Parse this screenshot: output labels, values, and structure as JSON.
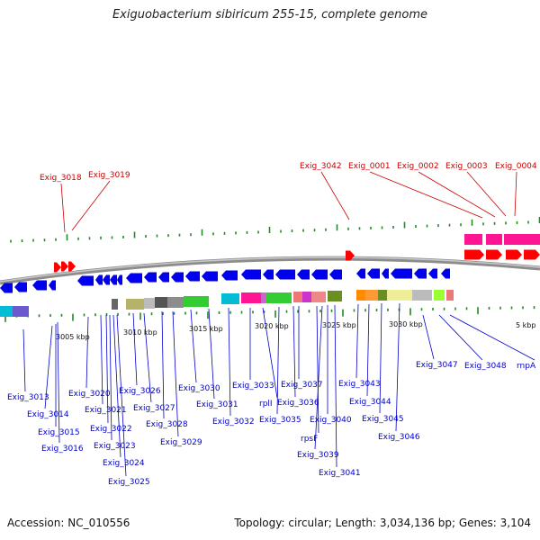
{
  "title": "Exiguobacterium sibiricum 255-15, complete genome",
  "footer": {
    "accession": "Accession: NC_010556",
    "summary": "Topology: circular; Length: 3,034,136 bp; Genes: 3,104"
  },
  "colors": {
    "forward_label": "#cc0000",
    "reverse_label": "#0000cc",
    "forward_gene": "#ff0000",
    "reverse_gene": "#0000ee",
    "tick": "#228b22",
    "backbone": "#8c8c8c"
  },
  "scale_labels": [
    "3005 kbp",
    "3010 kbp",
    "3015 kbp",
    "3020 kbp",
    "3025 kbp",
    "3030 kbp",
    "5 kbp"
  ],
  "forward_labels": [
    "Exig_3018",
    "Exig_3019",
    "Exig_3042",
    "Exig_0001",
    "Exig_0002",
    "Exig_0003",
    "Exig_0004"
  ],
  "reverse_labels": [
    "Exig_3013",
    "Exig_3014",
    "Exig_3015",
    "Exig_3016",
    "Exig_3020",
    "Exig_3021",
    "Exig_3022",
    "Exig_3023",
    "Exig_3024",
    "Exig_3025",
    "Exig_3026",
    "Exig_3027",
    "Exig_3028",
    "Exig_3029",
    "Exig_3030",
    "Exig_3031",
    "Exig_3032",
    "Exig_3033",
    "rplI",
    "Exig_3035",
    "Exig_3036",
    "Exig_3037",
    "rpsF",
    "Exig_3039",
    "Exig_3040",
    "Exig_3041",
    "Exig_3043",
    "Exig_3044",
    "Exig_3045",
    "Exig_3046",
    "Exig_3047",
    "Exig_3048",
    "rnpA"
  ]
}
